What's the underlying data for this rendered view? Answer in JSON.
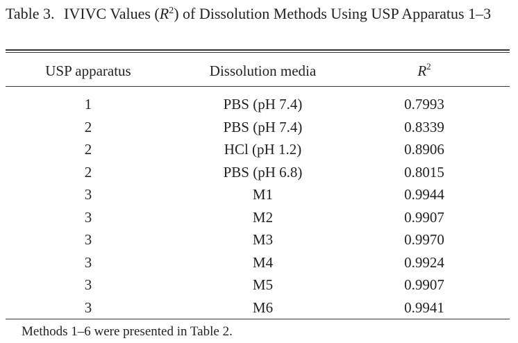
{
  "caption": {
    "label": "Table 3.",
    "text_prefix": "IVIVC Values (",
    "r_symbol": "R",
    "r_exponent": "2",
    "text_suffix": ") of Dissolution Methods Using USP Apparatus 1–3"
  },
  "table": {
    "headers": {
      "apparatus": "USP apparatus",
      "media": "Dissolution media",
      "r_symbol": "R",
      "r_exponent": "2"
    },
    "rows": [
      {
        "apparatus": "1",
        "media": "PBS (pH 7.4)",
        "r2": "0.7993"
      },
      {
        "apparatus": "2",
        "media": "PBS (pH 7.4)",
        "r2": "0.8339"
      },
      {
        "apparatus": "2",
        "media": "HCl (pH 1.2)",
        "r2": "0.8906"
      },
      {
        "apparatus": "2",
        "media": "PBS (pH 6.8)",
        "r2": "0.8015"
      },
      {
        "apparatus": "3",
        "media": "M1",
        "r2": "0.9944"
      },
      {
        "apparatus": "3",
        "media": "M2",
        "r2": "0.9907"
      },
      {
        "apparatus": "3",
        "media": "M3",
        "r2": "0.9970"
      },
      {
        "apparatus": "3",
        "media": "M4",
        "r2": "0.9924"
      },
      {
        "apparatus": "3",
        "media": "M5",
        "r2": "0.9907"
      },
      {
        "apparatus": "3",
        "media": "M6",
        "r2": "0.9941"
      }
    ]
  },
  "footnote": "Methods 1–6 were presented in Table 2."
}
